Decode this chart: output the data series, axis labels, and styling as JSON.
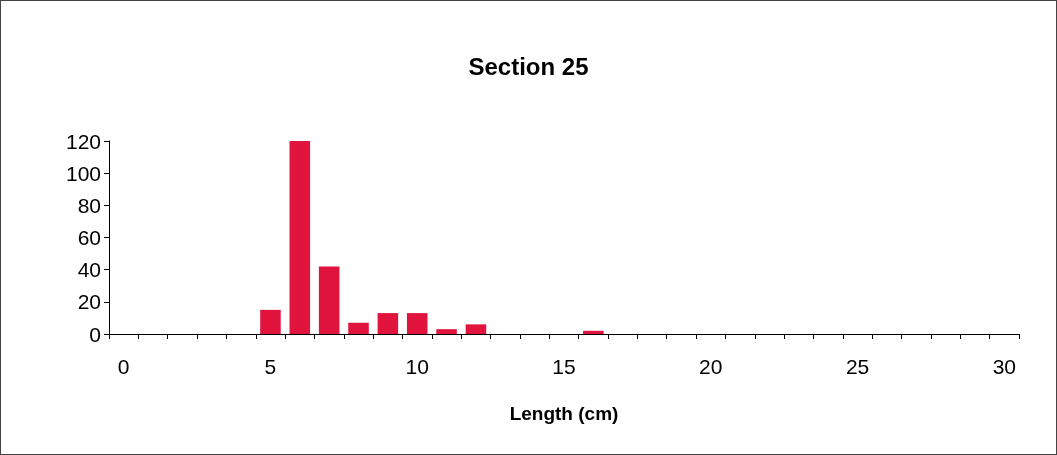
{
  "chart_data": {
    "type": "bar",
    "title": "Section 25",
    "xlabel": "Length (cm)",
    "categories": [
      "0",
      null,
      null,
      null,
      null,
      "5",
      null,
      null,
      null,
      null,
      "10",
      null,
      null,
      null,
      null,
      "15",
      null,
      null,
      null,
      null,
      "20",
      null,
      null,
      null,
      null,
      "25",
      null,
      null,
      null,
      null,
      "30"
    ],
    "values": [
      0,
      0,
      0,
      0,
      0,
      15,
      120,
      42,
      7,
      13,
      13,
      3,
      6,
      0,
      0,
      0,
      2,
      0,
      0,
      0,
      0,
      0,
      0,
      0,
      0,
      0,
      0,
      0,
      0,
      0,
      0
    ],
    "color": "#e0143c",
    "ylim": [
      0,
      120
    ],
    "yticks": [
      0,
      20,
      40,
      60,
      80,
      100,
      120
    ],
    "grid": false
  }
}
